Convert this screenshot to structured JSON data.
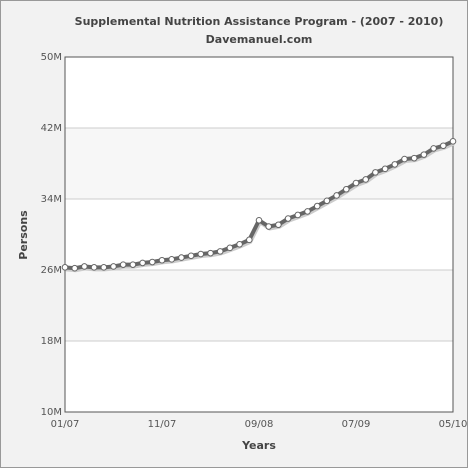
{
  "chart_data": {
    "type": "line",
    "title": "Supplemental Nutrition Assistance Program - (2007 - 2010)",
    "subtitle": "Davemanuel.com",
    "x_label": "Years",
    "y_label": "Persons",
    "categories": [
      "01/07",
      null,
      null,
      null,
      null,
      null,
      null,
      null,
      null,
      null,
      "11/07",
      null,
      null,
      null,
      null,
      null,
      null,
      null,
      null,
      null,
      "09/08",
      null,
      null,
      null,
      null,
      null,
      null,
      null,
      null,
      null,
      "07/09",
      null,
      null,
      null,
      null,
      null,
      null,
      null,
      null,
      null,
      "05/10"
    ],
    "series": [
      {
        "name": "Persons",
        "color": "#666666",
        "values": [
          26.3,
          26.2,
          26.4,
          26.3,
          26.3,
          26.4,
          26.6,
          26.6,
          26.8,
          26.9,
          27.1,
          27.2,
          27.4,
          27.6,
          27.8,
          27.9,
          28.1,
          28.5,
          28.9,
          29.4,
          31.6,
          30.9,
          31.1,
          31.8,
          32.2,
          32.6,
          33.2,
          33.8,
          34.4,
          35.1,
          35.8,
          36.2,
          37.0,
          37.4,
          37.9,
          38.5,
          38.6,
          39.0,
          39.7,
          40.0,
          40.5
        ]
      }
    ],
    "ylim": [
      10,
      50
    ],
    "yticks": [
      {
        "value": 10,
        "label": "10M"
      },
      {
        "value": 18,
        "label": "18M"
      },
      {
        "value": 26,
        "label": "26M"
      },
      {
        "value": 34,
        "label": "34M"
      },
      {
        "value": 42,
        "label": "42M"
      },
      {
        "value": 50,
        "label": "50M"
      }
    ],
    "grid": true
  }
}
